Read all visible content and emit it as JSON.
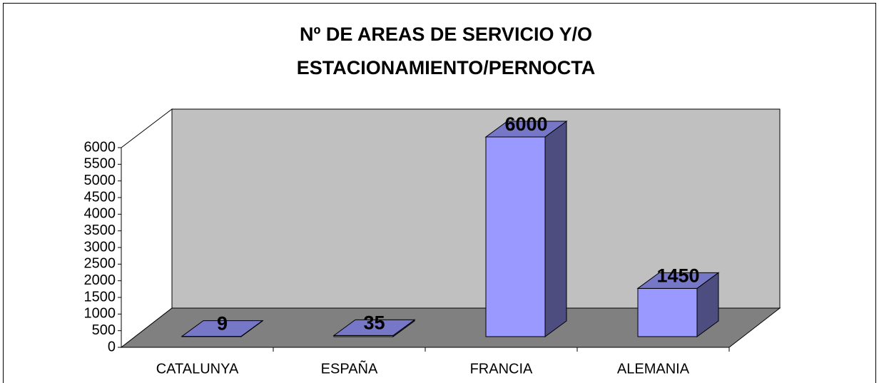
{
  "chart_data": {
    "type": "bar3d",
    "title": [
      "Nº DE AREAS DE SERVICIO Y/O",
      "ESTACIONAMIENTO/PERNOCTA"
    ],
    "categories": [
      "CATALUNYA",
      "ESPAÑA",
      "FRANCIA",
      "ALEMANIA"
    ],
    "values": [
      9,
      35,
      6000,
      1450
    ],
    "color": "#9999ff",
    "ylim": [
      0,
      6000
    ],
    "yticks": [
      0,
      500,
      1000,
      1500,
      2000,
      2500,
      3000,
      3500,
      4000,
      4500,
      5000,
      5500,
      6000
    ],
    "grid": false
  }
}
